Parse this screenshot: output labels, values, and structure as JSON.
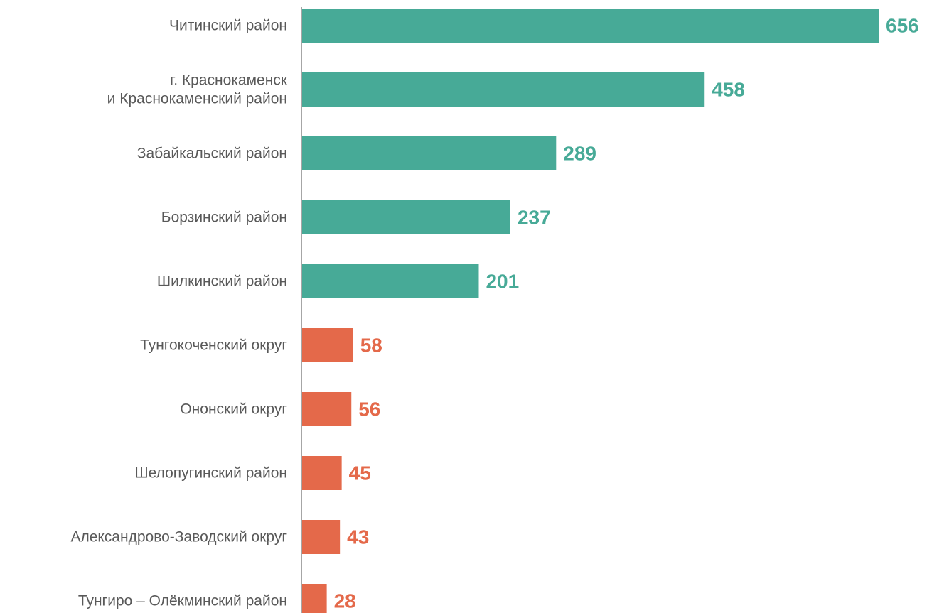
{
  "chart_data": {
    "type": "bar",
    "orientation": "horizontal",
    "categories": [
      [
        "Читинский район"
      ],
      [
        "г. Краснокаменск",
        "и Краснокаменский район"
      ],
      [
        "Забайкальский район"
      ],
      [
        "Борзинский район"
      ],
      [
        "Шилкинский район"
      ],
      [
        "Тунгокоченский округ"
      ],
      [
        "Ононский округ"
      ],
      [
        "Шелопугинский район"
      ],
      [
        "Александрово-Заводский округ"
      ],
      [
        "Тунгиро – Олёкминский район"
      ]
    ],
    "values": [
      656,
      458,
      289,
      237,
      201,
      58,
      56,
      45,
      43,
      28
    ],
    "bar_colors": [
      "#47AA97",
      "#47AA97",
      "#47AA97",
      "#47AA97",
      "#47AA97",
      "#E4694A",
      "#E4694A",
      "#E4694A",
      "#E4694A",
      "#E4694A"
    ],
    "data_labels": true,
    "grid": false,
    "legend": "none"
  }
}
